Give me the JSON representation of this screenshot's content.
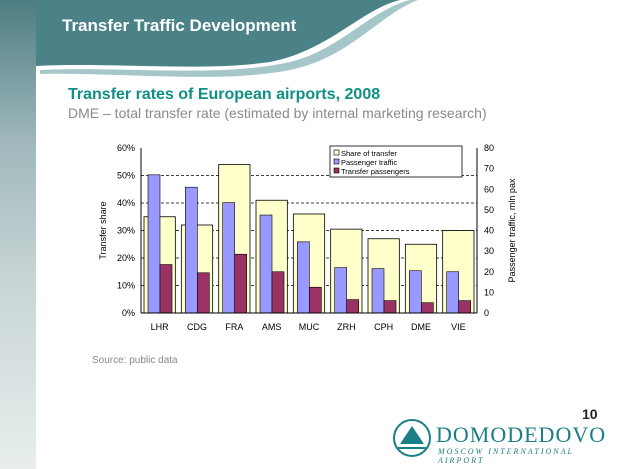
{
  "header": {
    "title": "Transfer Traffic Development",
    "subtitle": "Transfer rates of European airports, 2008",
    "description": "DME – total transfer rate (estimated by internal marketing research)"
  },
  "source": "Source: public data",
  "page_number": "10",
  "logo": {
    "name": "DOMODEDOVO",
    "tagline": "MOSCOW INTERNATIONAL AIRPORT"
  },
  "colors": {
    "teal": "#3f7f86",
    "share": "#ffffcc",
    "passenger": "#9999ff",
    "transfer": "#993366"
  },
  "chart_data": {
    "type": "bar",
    "categories": [
      "LHR",
      "CDG",
      "FRA",
      "AMS",
      "MUC",
      "ZRH",
      "CPH",
      "DME",
      "VIE"
    ],
    "ylabel": "Transfer share",
    "y2label": "Passenger traffic, mln pax",
    "ylim": [
      0,
      60
    ],
    "y2lim": [
      0,
      80
    ],
    "yticks": [
      "0%",
      "10%",
      "20%",
      "30%",
      "40%",
      "50%",
      "60%"
    ],
    "y2ticks": [
      "0",
      "10",
      "20",
      "30",
      "40",
      "50",
      "60",
      "70",
      "80"
    ],
    "grid": true,
    "legend_position": "top-right",
    "series": [
      {
        "name": "Share of transfer",
        "axis": "left",
        "values": [
          35,
          32,
          54,
          41,
          36,
          30.5,
          27,
          25,
          30
        ]
      },
      {
        "name": "Passenger traffic",
        "axis": "right",
        "values": [
          67,
          61,
          53.5,
          47.5,
          34.5,
          22,
          21.5,
          20.5,
          20
        ]
      },
      {
        "name": "Transfer passengers",
        "axis": "right",
        "values": [
          23.5,
          19.5,
          28.5,
          20,
          12.5,
          6.5,
          6,
          5,
          6
        ]
      }
    ]
  }
}
